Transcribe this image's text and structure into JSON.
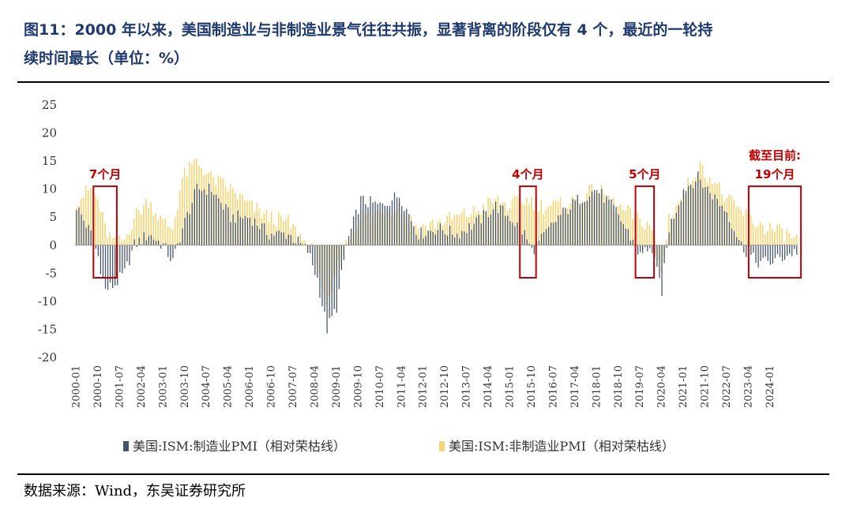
{
  "figure": {
    "title_line1": "图11：2000 年以来，美国制造业与非制造业景气往往共振，显著背离的阶段仅有 4 个，最近的一轮持",
    "title_line2": "续时间最长（单位：%）",
    "source": "数据来源：Wind，东吴证券研究所"
  },
  "colors": {
    "series1": "#44546a",
    "series2": "#f5d67a",
    "annotation": "#c00000",
    "title": "#1f3a6e"
  },
  "chart_data": {
    "type": "bar",
    "ylim": [
      -20,
      25
    ],
    "yticks": [
      "25",
      "20",
      "15",
      "10",
      "5",
      "0",
      "-5",
      "-10",
      "-15",
      "-20"
    ],
    "xticks": [
      "2000-01",
      "2000-10",
      "2001-07",
      "2002-04",
      "2003-01",
      "2003-10",
      "2004-07",
      "2005-04",
      "2006-01",
      "2006-10",
      "2007-07",
      "2008-04",
      "2009-01",
      "2009-10",
      "2010-07",
      "2011-04",
      "2012-01",
      "2012-10",
      "2013-07",
      "2014-04",
      "2015-01",
      "2015-10",
      "2016-07",
      "2017-04",
      "2018-01",
      "2018-10",
      "2019-07",
      "2020-04",
      "2021-01",
      "2021-10",
      "2022-07",
      "2023-04",
      "2024-01"
    ],
    "anchors": [
      {
        "t": 0,
        "mfg": 7,
        "nmfg": 8
      },
      {
        "t": 6,
        "mfg": 2,
        "nmfg": 10
      },
      {
        "t": 9,
        "mfg": -2,
        "nmfg": 8
      },
      {
        "t": 12,
        "mfg": -8,
        "nmfg": 3
      },
      {
        "t": 16,
        "mfg": -7,
        "nmfg": 0
      },
      {
        "t": 20,
        "mfg": -5,
        "nmfg": 1
      },
      {
        "t": 24,
        "mfg": 0,
        "nmfg": 5
      },
      {
        "t": 30,
        "mfg": 2,
        "nmfg": 8
      },
      {
        "t": 36,
        "mfg": 0,
        "nmfg": 4
      },
      {
        "t": 40,
        "mfg": -3,
        "nmfg": 3
      },
      {
        "t": 44,
        "mfg": 3,
        "nmfg": 12
      },
      {
        "t": 50,
        "mfg": 10,
        "nmfg": 15
      },
      {
        "t": 56,
        "mfg": 10,
        "nmfg": 12
      },
      {
        "t": 64,
        "mfg": 5,
        "nmfg": 10
      },
      {
        "t": 72,
        "mfg": 5,
        "nmfg": 7
      },
      {
        "t": 80,
        "mfg": 2,
        "nmfg": 5
      },
      {
        "t": 88,
        "mfg": 2,
        "nmfg": 4
      },
      {
        "t": 96,
        "mfg": -1,
        "nmfg": 0
      },
      {
        "t": 100,
        "mfg": -6,
        "nmfg": -2
      },
      {
        "t": 104,
        "mfg": -15,
        "nmfg": -12
      },
      {
        "t": 108,
        "mfg": -11,
        "nmfg": -5
      },
      {
        "t": 112,
        "mfg": 0,
        "nmfg": 0
      },
      {
        "t": 118,
        "mfg": 8,
        "nmfg": 5
      },
      {
        "t": 126,
        "mfg": 7,
        "nmfg": 6
      },
      {
        "t": 134,
        "mfg": 9,
        "nmfg": 7
      },
      {
        "t": 142,
        "mfg": 2,
        "nmfg": 3
      },
      {
        "t": 150,
        "mfg": 3,
        "nmfg": 4
      },
      {
        "t": 158,
        "mfg": 2,
        "nmfg": 5
      },
      {
        "t": 166,
        "mfg": 4,
        "nmfg": 6
      },
      {
        "t": 174,
        "mfg": 7,
        "nmfg": 8
      },
      {
        "t": 180,
        "mfg": 5,
        "nmfg": 7
      },
      {
        "t": 186,
        "mfg": 2,
        "nmfg": 8
      },
      {
        "t": 189,
        "mfg": -1,
        "nmfg": 8
      },
      {
        "t": 193,
        "mfg": 1,
        "nmfg": 7
      },
      {
        "t": 200,
        "mfg": 5,
        "nmfg": 7
      },
      {
        "t": 208,
        "mfg": 8,
        "nmfg": 8
      },
      {
        "t": 216,
        "mfg": 10,
        "nmfg": 10
      },
      {
        "t": 224,
        "mfg": 6,
        "nmfg": 7
      },
      {
        "t": 232,
        "mfg": 0,
        "nmfg": 5
      },
      {
        "t": 234,
        "mfg": -2,
        "nmfg": 4
      },
      {
        "t": 238,
        "mfg": 0,
        "nmfg": 4
      },
      {
        "t": 243,
        "mfg": -8,
        "nmfg": -5
      },
      {
        "t": 246,
        "mfg": 3,
        "nmfg": 5
      },
      {
        "t": 252,
        "mfg": 10,
        "nmfg": 9
      },
      {
        "t": 258,
        "mfg": 12,
        "nmfg": 14
      },
      {
        "t": 264,
        "mfg": 9,
        "nmfg": 12
      },
      {
        "t": 270,
        "mfg": 6,
        "nmfg": 8
      },
      {
        "t": 276,
        "mfg": 0,
        "nmfg": 6
      },
      {
        "t": 282,
        "mfg": -3,
        "nmfg": 4
      },
      {
        "t": 288,
        "mfg": -3,
        "nmfg": 3
      },
      {
        "t": 294,
        "mfg": -2,
        "nmfg": 2
      },
      {
        "t": 299,
        "mfg": -1,
        "nmfg": 1
      }
    ],
    "series": [
      {
        "name": "美国:ISM:制造业PMI（相对荣枯线）"
      },
      {
        "name": "美国:ISM:非制造业PMI（相对荣枯线）"
      }
    ],
    "annotations": [
      {
        "label": "7个月",
        "start": 9,
        "end": 15
      },
      {
        "label": "4个月",
        "start": 186,
        "end": 189
      },
      {
        "label": "5个月",
        "start": 234,
        "end": 238
      },
      {
        "label_line1": "截至目前:",
        "label_line2": "19个月",
        "start": 281,
        "end": 299
      }
    ]
  }
}
